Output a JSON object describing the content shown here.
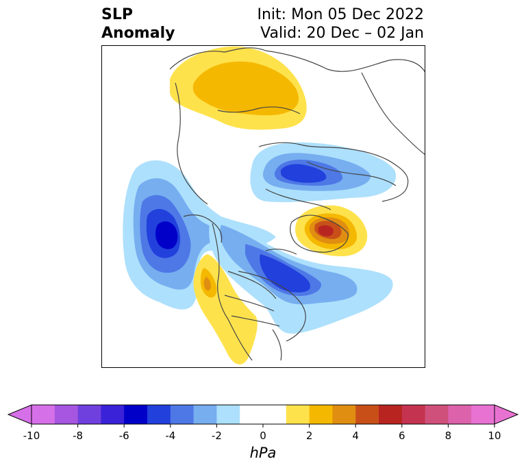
{
  "title": {
    "left_line1": "SLP",
    "left_line2": "Anomaly",
    "right_line1": "Init: Mon 05 Dec 2022",
    "right_line2": "Valid: 20 Dec – 02 Jan"
  },
  "colorbar": {
    "units": "hPa",
    "tick_labels": [
      "-10",
      "-8",
      "-6",
      "-4",
      "-2",
      "0",
      "2",
      "4",
      "6",
      "8",
      "10"
    ],
    "colors": [
      "#d670e8",
      "#a656e0",
      "#7040de",
      "#3a22d8",
      "#0000c8",
      "#2240dc",
      "#4e78e6",
      "#76aef0",
      "#ade0fc",
      "#ffffff",
      "#ffffff",
      "#fee24c",
      "#f5b800",
      "#e08e12",
      "#c85018",
      "#b82420",
      "#c43450",
      "#d0507c",
      "#dc62ac",
      "#e872d2"
    ],
    "range": [
      -10,
      10
    ],
    "extend": "both"
  },
  "map": {
    "colors": {
      "neg1": "#ade0fc",
      "neg2": "#76aef0",
      "neg3": "#4e78e6",
      "neg4": "#2240dc",
      "neg5": "#0000c8",
      "pos1": "#fee24c",
      "pos2": "#f5b800",
      "pos3": "#e08e12",
      "pos4": "#c85018",
      "pos5": "#b82420",
      "coast": "#444444"
    }
  }
}
